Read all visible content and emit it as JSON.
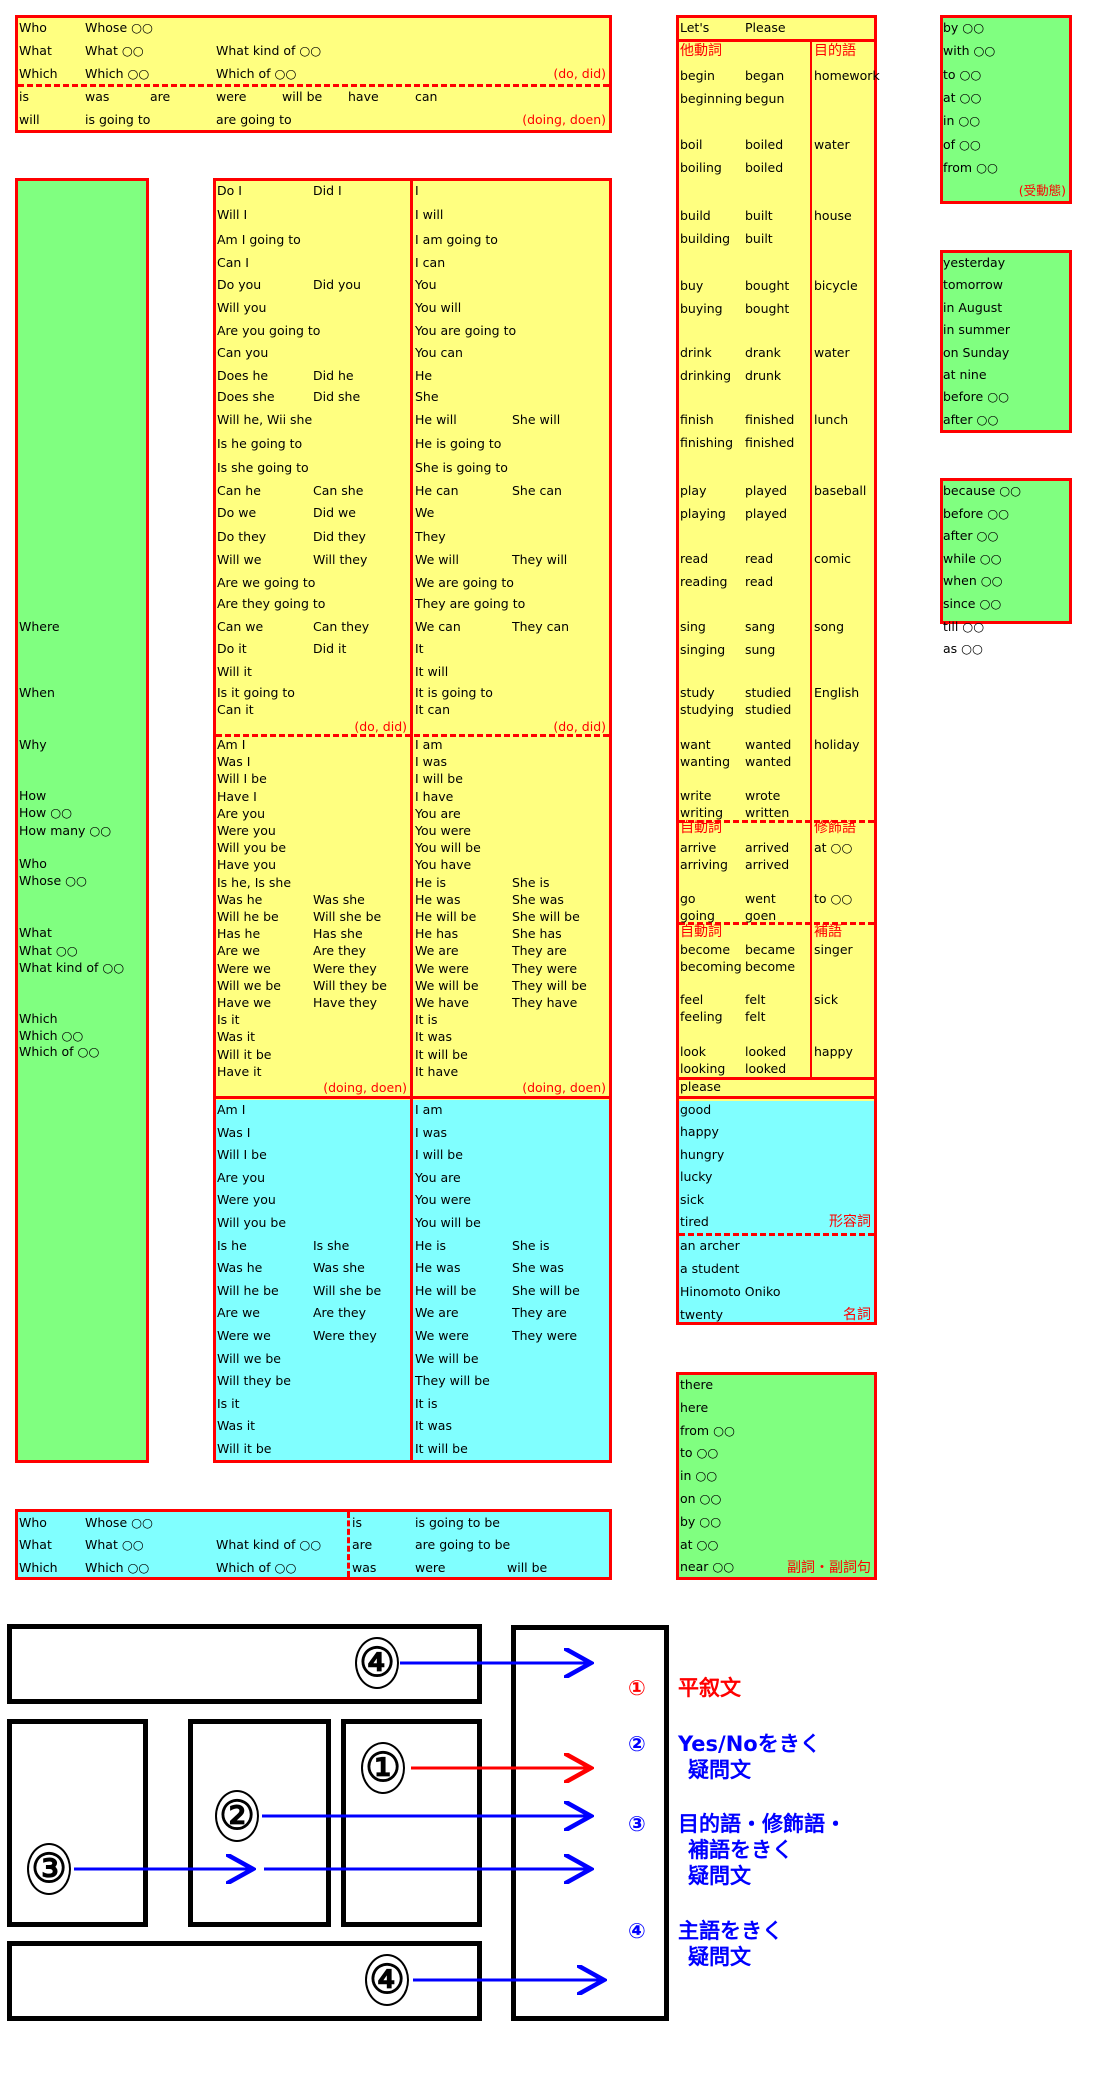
{
  "colors": {
    "border": "#ff0000",
    "yellow": "#ffff80",
    "green": "#80ff80",
    "cyan": "#80ffff",
    "blue": "#0000ff",
    "black": "#000000"
  },
  "summary_box": {
    "rows": [
      [
        "Who",
        "Whose ○○"
      ],
      [
        "What",
        "What ○○",
        "What kind of ○○"
      ],
      [
        "Which",
        "Which ○○",
        "Which of ○○"
      ],
      [
        "is",
        "was",
        "are",
        "were",
        "will be",
        "have",
        "can"
      ],
      [
        "will",
        "is going to",
        "are going to"
      ]
    ],
    "note_do": "(do, did)",
    "note_doing": "(doing, doen)"
  },
  "wh_column": {
    "items": [
      "Where",
      "When",
      "Why",
      "How",
      "How ○○",
      "How many ○○",
      "Who",
      "Whose ○○",
      "What",
      "What ○○",
      "What kind of ○○",
      "Which",
      "Which ○○",
      "Which of ○○"
    ]
  },
  "question_forms": {
    "do_section": {
      "left": [
        [
          "Do I",
          "Did I"
        ],
        [
          "Will I"
        ],
        [
          "Am I going to"
        ],
        [
          "Can I"
        ],
        [
          "Do you",
          "Did you"
        ],
        [
          "Will you"
        ],
        [
          "Are you going to"
        ],
        [
          "Can you"
        ],
        [
          "Does he",
          "Did he"
        ],
        [
          "Does she",
          "Did she"
        ],
        [
          "Will he, Wii she"
        ],
        [
          "Is he going to"
        ],
        [
          "Is she going to"
        ],
        [
          "Can he",
          "Can she"
        ],
        [
          "Do we",
          "Did we"
        ],
        [
          "Do they",
          "Did they"
        ],
        [
          "Will we",
          "Will they"
        ],
        [
          "Are we going to"
        ],
        [
          "Are they going to"
        ],
        [
          "Can we",
          "Can they"
        ],
        [
          "Do it",
          "Did it"
        ],
        [
          "Will it"
        ],
        [
          "Is it going to"
        ],
        [
          "Can it"
        ]
      ],
      "right": [
        [
          "I"
        ],
        [
          "I will"
        ],
        [
          "I am going to"
        ],
        [
          "I can"
        ],
        [
          "You"
        ],
        [
          "You will"
        ],
        [
          "You are going to"
        ],
        [
          "You can"
        ],
        [
          "He"
        ],
        [
          "She"
        ],
        [
          "He will",
          "She will"
        ],
        [
          "He is going to"
        ],
        [
          "She is going to"
        ],
        [
          "He can",
          "She can"
        ],
        [
          "We"
        ],
        [
          "They"
        ],
        [
          "We will",
          "They will"
        ],
        [
          "We are going to"
        ],
        [
          "They are going to"
        ],
        [
          "We can",
          "They can"
        ],
        [
          "It"
        ],
        [
          "It will"
        ],
        [
          "It is going to"
        ],
        [
          "It can"
        ]
      ],
      "note": "(do, did)"
    },
    "be_section": {
      "left": [
        [
          "Am I"
        ],
        [
          "Was I"
        ],
        [
          "Will I be"
        ],
        [
          "Have I"
        ],
        [
          "Are you"
        ],
        [
          "Were you"
        ],
        [
          "Will you be"
        ],
        [
          "Have you"
        ],
        [
          "Is he, Is she"
        ],
        [
          "Was he",
          "Was she"
        ],
        [
          "Will he be",
          "Will she be"
        ],
        [
          "Has he",
          "Has she"
        ],
        [
          "Are we",
          "Are they"
        ],
        [
          "Were we",
          "Were they"
        ],
        [
          "Will we be",
          "Will they be"
        ],
        [
          "Have we",
          "Have they"
        ],
        [
          "Is it"
        ],
        [
          "Was it"
        ],
        [
          "Will it be"
        ],
        [
          "Have it"
        ]
      ],
      "right": [
        [
          "I am"
        ],
        [
          "I was"
        ],
        [
          "I will be"
        ],
        [
          "I have"
        ],
        [
          "You are"
        ],
        [
          "You were"
        ],
        [
          "You will be"
        ],
        [
          "You have"
        ],
        [
          "He is",
          "She is"
        ],
        [
          "He was",
          "She was"
        ],
        [
          "He will be",
          "She will be"
        ],
        [
          "He has",
          "She has"
        ],
        [
          "We are",
          "They are"
        ],
        [
          "We were",
          "They were"
        ],
        [
          "We will be",
          "They will be"
        ],
        [
          "We have",
          "They have"
        ],
        [
          "It is"
        ],
        [
          "It was"
        ],
        [
          "It will be"
        ],
        [
          "It have"
        ]
      ],
      "note": "(doing, doen)"
    },
    "passive_section": {
      "left": [
        [
          "Am I"
        ],
        [
          "Was I"
        ],
        [
          "Will I be"
        ],
        [
          "Are you"
        ],
        [
          "Were you"
        ],
        [
          "Will you be"
        ],
        [
          "Is he",
          "Is she"
        ],
        [
          "Was he",
          "Was she"
        ],
        [
          "Will he be",
          "Will she be"
        ],
        [
          "Are we",
          "Are they"
        ],
        [
          "Were we",
          "Were they"
        ],
        [
          "Will we be"
        ],
        [
          "Will they be"
        ],
        [
          "Is it"
        ],
        [
          "Was it"
        ],
        [
          "Will it be"
        ]
      ],
      "right": [
        [
          "I am"
        ],
        [
          "I was"
        ],
        [
          "I will be"
        ],
        [
          "You are"
        ],
        [
          "You were"
        ],
        [
          "You will be"
        ],
        [
          "He is",
          "She is"
        ],
        [
          "He was",
          "She was"
        ],
        [
          "He will be",
          "She will be"
        ],
        [
          "We are",
          "They are"
        ],
        [
          "We were",
          "They were"
        ],
        [
          "We will be"
        ],
        [
          "They will be"
        ],
        [
          "It is"
        ],
        [
          "It was"
        ],
        [
          "It will be"
        ]
      ]
    }
  },
  "bottom_box": {
    "left_rows": [
      [
        "Who",
        "Whose ○○"
      ],
      [
        "What",
        "What ○○",
        "What kind of ○○"
      ],
      [
        "Which",
        "Which ○○",
        "Which of ○○"
      ]
    ],
    "right_rows": [
      [
        "is",
        "is going to be"
      ],
      [
        "are",
        "are going to be"
      ],
      [
        "was",
        "were",
        "will be"
      ]
    ]
  },
  "verbs": {
    "lets": "Let's",
    "please": "Please",
    "transitive": {
      "header": "他動詞",
      "object_header": "目的語",
      "groups": [
        {
          "forms": [
            [
              "begin",
              "began"
            ],
            [
              "beginning",
              "begun"
            ]
          ],
          "object": "homework"
        },
        {
          "forms": [
            [
              "boil",
              "boiled"
            ],
            [
              "boiling",
              "boiled"
            ]
          ],
          "object": "water"
        },
        {
          "forms": [
            [
              "build",
              "built"
            ],
            [
              "building",
              "built"
            ]
          ],
          "object": "house"
        },
        {
          "forms": [
            [
              "buy",
              "bought"
            ],
            [
              "buying",
              "bought"
            ]
          ],
          "object": "bicycle"
        },
        {
          "forms": [
            [
              "drink",
              "drank"
            ],
            [
              "drinking",
              "drunk"
            ]
          ],
          "object": "water"
        },
        {
          "forms": [
            [
              "finish",
              "finished"
            ],
            [
              "finishing",
              "finished"
            ]
          ],
          "object": "lunch"
        },
        {
          "forms": [
            [
              "play",
              "played"
            ],
            [
              "playing",
              "played"
            ]
          ],
          "object": "baseball"
        },
        {
          "forms": [
            [
              "read",
              "read"
            ],
            [
              "reading",
              "read"
            ]
          ],
          "object": "comic"
        },
        {
          "forms": [
            [
              "sing",
              "sang"
            ],
            [
              "singing",
              "sung"
            ]
          ],
          "object": "song"
        },
        {
          "forms": [
            [
              "study",
              "studied"
            ],
            [
              "studying",
              "studied"
            ]
          ],
          "object": "English"
        },
        {
          "forms": [
            [
              "want",
              "wanted"
            ],
            [
              "wanting",
              "wanted"
            ]
          ],
          "object": "holiday"
        },
        {
          "forms": [
            [
              "write",
              "wrote"
            ],
            [
              "writing",
              "written"
            ]
          ],
          "object": ""
        }
      ]
    },
    "intransitive_modifier": {
      "header": "自動詞",
      "modifier_header": "修飾語",
      "groups": [
        {
          "forms": [
            [
              "arrive",
              "arrived"
            ],
            [
              "arriving",
              "arrived"
            ]
          ],
          "object": "at ○○"
        },
        {
          "forms": [
            [
              "go",
              "went"
            ],
            [
              "going",
              "goen"
            ]
          ],
          "object": "to ○○"
        }
      ]
    },
    "intransitive_complement": {
      "header": "自動詞",
      "complement_header": "補語",
      "groups": [
        {
          "forms": [
            [
              "become",
              "became"
            ],
            [
              "becoming",
              "become"
            ]
          ],
          "object": "singer"
        },
        {
          "forms": [
            [
              "feel",
              "felt"
            ],
            [
              "feeling",
              "felt"
            ]
          ],
          "object": "sick"
        },
        {
          "forms": [
            [
              "look",
              "looked"
            ],
            [
              "looking",
              "looked"
            ]
          ],
          "object": "happy"
        }
      ]
    },
    "please_row": "please",
    "adjectives": {
      "items": [
        "good",
        "happy",
        "hungry",
        "lucky",
        "sick",
        "tired"
      ],
      "label": "形容詞"
    },
    "nouns": {
      "items": [
        "an archer",
        "a student",
        "Hinomoto Oniko",
        "twenty"
      ],
      "label": "名詞"
    }
  },
  "prepositions_passive": {
    "items": [
      "by ○○",
      "with ○○",
      "to ○○",
      "at ○○",
      "in ○○",
      "of ○○",
      "from ○○"
    ],
    "label": "(受動態)"
  },
  "time_expressions": {
    "items": [
      "yesterday",
      "tomorrow",
      "in August",
      "in summer",
      "on Sunday",
      "at nine",
      "before ○○",
      "after ○○"
    ]
  },
  "conjunctions": {
    "items": [
      "because ○○",
      "before ○○",
      "after ○○",
      "while ○○",
      "when ○○",
      "since ○○",
      "till ○○",
      "as ○○"
    ]
  },
  "adverbs": {
    "items": [
      "there",
      "here",
      "from ○○",
      "to ○○",
      "in ○○",
      "on ○○",
      "by ○○",
      "at ○○",
      "near ○○"
    ],
    "label": "副詞・副詞句"
  },
  "diagram": {
    "markers": {
      "m1": "①",
      "m2": "②",
      "m3": "③",
      "m4_top": "④",
      "m4_bottom": "④"
    },
    "legend": [
      {
        "num": "①",
        "lines": [
          "平叙文"
        ],
        "color": "#ff0000"
      },
      {
        "num": "②",
        "lines": [
          "Yes/Noをきく",
          "疑問文"
        ],
        "color": "#0000ff"
      },
      {
        "num": "③",
        "lines": [
          "目的語・修飾語・",
          "補語をきく",
          "疑問文"
        ],
        "color": "#0000ff"
      },
      {
        "num": "④",
        "lines": [
          "主語をきく",
          "疑問文"
        ],
        "color": "#0000ff"
      }
    ]
  }
}
